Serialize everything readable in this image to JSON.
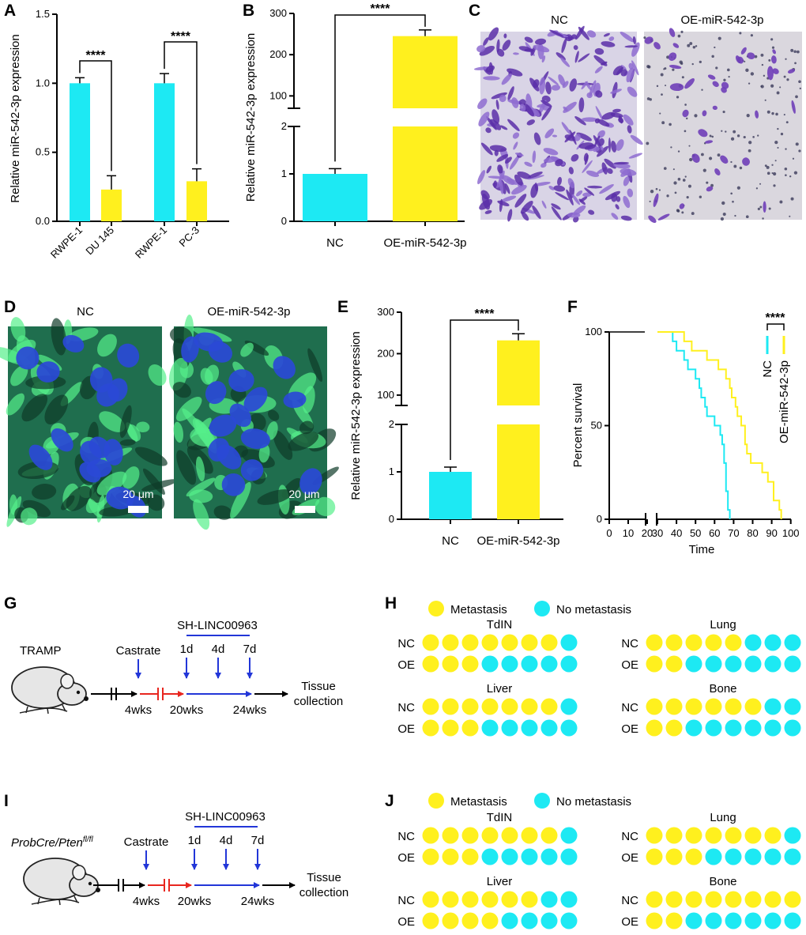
{
  "colors": {
    "cyan": "#1DE9F3",
    "yellow": "#FFF01E",
    "red": "#E8261F",
    "blue": "#2236D8",
    "purple": "#6F3FB8",
    "green": "#3BE37A",
    "nucleus": "#2A49D6"
  },
  "panel_labels": {
    "A": "A",
    "B": "B",
    "C": "C",
    "D": "D",
    "E": "E",
    "F": "F",
    "G": "G",
    "H": "H",
    "I": "I",
    "J": "J"
  },
  "chart_data": [
    {
      "id": "A",
      "type": "bar",
      "ylabel": "Relative miR-542-3p expression",
      "categories": [
        "RWPE-1",
        "DU 145",
        "RWPE-1",
        "PC-3"
      ],
      "values": [
        1.0,
        0.23,
        1.0,
        0.29
      ],
      "errors": [
        0.04,
        0.1,
        0.07,
        0.09
      ],
      "bar_colors": [
        "cyan",
        "yellow",
        "cyan",
        "yellow"
      ],
      "ylim": [
        0,
        1.5
      ],
      "yticks": [
        "0.0",
        "0.5",
        "1.0",
        "1.5"
      ],
      "ytick_values": [
        0,
        0.5,
        1.0,
        1.5
      ],
      "significance": [
        "****",
        "****"
      ]
    },
    {
      "id": "B",
      "type": "bar",
      "ylabel": "Relative miR-542-3p expression",
      "categories": [
        "NC",
        "OE-miR-542-3p"
      ],
      "values": [
        1.0,
        245
      ],
      "errors": [
        0.06,
        15
      ],
      "bar_colors": [
        "cyan",
        "yellow"
      ],
      "broken_axis": {
        "lower": [
          0,
          2
        ],
        "upper": [
          70,
          300
        ]
      },
      "yticks": [
        "0",
        "1",
        "2",
        "100",
        "200",
        "300"
      ],
      "ytick_values": [
        0,
        1,
        2,
        100,
        200,
        300
      ],
      "significance": [
        "****"
      ]
    },
    {
      "id": "E",
      "type": "bar",
      "ylabel": "Relative miR-542-3p expression",
      "categories": [
        "NC",
        "OE-miR-542-3p"
      ],
      "values": [
        1.0,
        232
      ],
      "errors": [
        0.05,
        16
      ],
      "bar_colors": [
        "cyan",
        "yellow"
      ],
      "broken_axis": {
        "lower": [
          0,
          2
        ],
        "upper": [
          75,
          300
        ]
      },
      "yticks": [
        "0",
        "1",
        "2",
        "100",
        "200",
        "300"
      ],
      "ytick_values": [
        0,
        1,
        2,
        100,
        200,
        300
      ],
      "significance": [
        "****"
      ]
    },
    {
      "id": "F",
      "type": "line",
      "ylabel": "Percent survival",
      "xlabel": "Time",
      "xlim": [
        0,
        100
      ],
      "ylim": [
        0,
        100
      ],
      "xticks": [
        "0",
        "10",
        "20",
        "30",
        "40",
        "50",
        "60",
        "70",
        "80",
        "90",
        "100"
      ],
      "xtick_values": [
        0,
        10,
        20,
        30,
        40,
        50,
        60,
        70,
        80,
        90,
        100
      ],
      "yticks": [
        "0",
        "50",
        "100"
      ],
      "ytick_values": [
        0,
        50,
        100
      ],
      "series": [
        {
          "name": "NC",
          "color": "cyan",
          "points": [
            [
              0,
              100
            ],
            [
              35,
              100
            ],
            [
              38,
              95
            ],
            [
              40,
              90
            ],
            [
              44,
              85
            ],
            [
              46,
              80
            ],
            [
              50,
              75
            ],
            [
              52,
              70
            ],
            [
              53,
              65
            ],
            [
              55,
              60
            ],
            [
              56,
              55
            ],
            [
              60,
              50
            ],
            [
              63,
              45
            ],
            [
              64,
              40
            ],
            [
              65,
              30
            ],
            [
              66,
              15
            ],
            [
              67,
              5
            ],
            [
              68,
              0
            ]
          ]
        },
        {
          "name": "OE-miR-542-3p",
          "color": "yellow",
          "points": [
            [
              0,
              100
            ],
            [
              40,
              100
            ],
            [
              44,
              95
            ],
            [
              48,
              90
            ],
            [
              56,
              85
            ],
            [
              62,
              80
            ],
            [
              66,
              75
            ],
            [
              68,
              70
            ],
            [
              69,
              65
            ],
            [
              71,
              60
            ],
            [
              72,
              55
            ],
            [
              74,
              50
            ],
            [
              76,
              40
            ],
            [
              77,
              35
            ],
            [
              79,
              30
            ],
            [
              85,
              25
            ],
            [
              88,
              20
            ],
            [
              91,
              10
            ],
            [
              94,
              5
            ],
            [
              95,
              0
            ]
          ]
        }
      ],
      "significance": "****"
    }
  ],
  "panelC": {
    "nc": "NC",
    "oe": "OE-miR-542-3p"
  },
  "panelD": {
    "nc": "NC",
    "oe": "OE-miR-542-3p",
    "scale": "20 μm"
  },
  "panelG": {
    "model": "TRAMP",
    "castrate": "Castrate",
    "treatment": "SH-LINC00963",
    "days": [
      "1d",
      "4d",
      "7d"
    ],
    "weeks": [
      "4wks",
      "20wks",
      "24wks"
    ],
    "end1": "Tissue",
    "end2": "collection"
  },
  "panelI": {
    "model": "ProbCre/Pten",
    "model_sup": "fl/fl",
    "castrate": "Castrate",
    "treatment": "SH-LINC00963",
    "days": [
      "1d",
      "4d",
      "7d"
    ],
    "weeks": [
      "4wks",
      "20wks",
      "24wks"
    ],
    "end1": "Tissue",
    "end2": "collection"
  },
  "panelH": {
    "legend": [
      "Metastasis",
      "No metastasis"
    ],
    "groups": [
      {
        "title": "TdIN",
        "NC": 7,
        "OE": 3
      },
      {
        "title": "Lung",
        "NC": 5,
        "OE": 2
      },
      {
        "title": "Liver",
        "NC": 7,
        "OE": 3
      },
      {
        "title": "Bone",
        "NC": 6,
        "OE": 2
      }
    ],
    "row_labels": [
      "NC",
      "OE"
    ],
    "total": 8
  },
  "panelJ": {
    "legend": [
      "Metastasis",
      "No metastasis"
    ],
    "groups": [
      {
        "title": "TdIN",
        "NC": 7,
        "OE": 3
      },
      {
        "title": "Lung",
        "NC": 7,
        "OE": 3
      },
      {
        "title": "Liver",
        "NC": 6,
        "OE": 4
      },
      {
        "title": "Bone",
        "NC": 8,
        "OE": 2
      }
    ],
    "row_labels": [
      "NC",
      "OE"
    ],
    "total": 8
  }
}
